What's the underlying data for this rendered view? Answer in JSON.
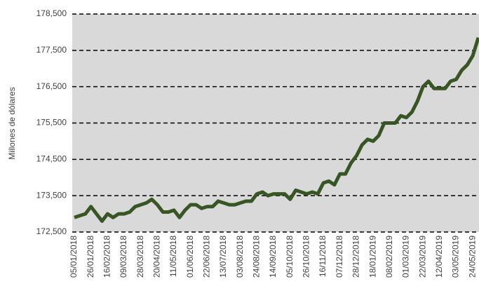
{
  "chart_data": {
    "type": "line",
    "y_label": "Millones de dólares",
    "categories": [
      "05/01/2018",
      null,
      null,
      "26/01/2018",
      null,
      null,
      "16/02/2018",
      null,
      null,
      "09/03/2018",
      null,
      null,
      "28/03/2018",
      null,
      null,
      "20/04/2018",
      null,
      null,
      "11/05/2018",
      null,
      null,
      "01/06/2018",
      null,
      null,
      "22/06/2018",
      null,
      null,
      "13/07/2018",
      null,
      null,
      "03/08/2018",
      null,
      null,
      "24/08/2018",
      null,
      null,
      "14/09/2018",
      null,
      null,
      "05/10/2018",
      null,
      null,
      "26/10/2018",
      null,
      null,
      "16/11/2018",
      null,
      null,
      "07/12/2018",
      null,
      null,
      "28/12/2018",
      null,
      null,
      "18/01/2019",
      null,
      null,
      "08/02/2019",
      null,
      null,
      "01/03/2019",
      null,
      null,
      "22/03/2019",
      null,
      null,
      "12/04/2019",
      null,
      null,
      "03/05/2019",
      null,
      null,
      "24/05/2019",
      null
    ],
    "series": [
      {
        "name": "Millones de dólares",
        "color": "#375623",
        "values": [
          172900,
          172950,
          173000,
          173200,
          173000,
          172800,
          173000,
          172900,
          173000,
          173000,
          173050,
          173200,
          173250,
          173300,
          173400,
          173250,
          173050,
          173050,
          173100,
          172900,
          173100,
          173250,
          173250,
          173150,
          173200,
          173200,
          173350,
          173300,
          173250,
          173250,
          173300,
          173350,
          173350,
          173550,
          173600,
          173500,
          173550,
          173550,
          173550,
          173400,
          173650,
          173600,
          173550,
          173600,
          173550,
          173850,
          173900,
          173800,
          174100,
          174100,
          174400,
          174600,
          174900,
          175050,
          175000,
          175150,
          175500,
          175500,
          175500,
          175700,
          175650,
          175800,
          176100,
          176500,
          176650,
          176450,
          176450,
          176450,
          176650,
          176700,
          176950,
          177100,
          177350,
          177850
        ]
      }
    ],
    "ylim": [
      172500,
      178500
    ],
    "yticks": [
      {
        "value": 172500,
        "label": "172,500"
      },
      {
        "value": 173500,
        "label": "173,500"
      },
      {
        "value": 174500,
        "label": "174,500"
      },
      {
        "value": 175500,
        "label": "175,500"
      },
      {
        "value": 176500,
        "label": "176,500"
      },
      {
        "value": 177500,
        "label": "177,500"
      },
      {
        "value": 178500,
        "label": "178,500"
      }
    ],
    "grid": true,
    "background": "#d9d9d9"
  }
}
